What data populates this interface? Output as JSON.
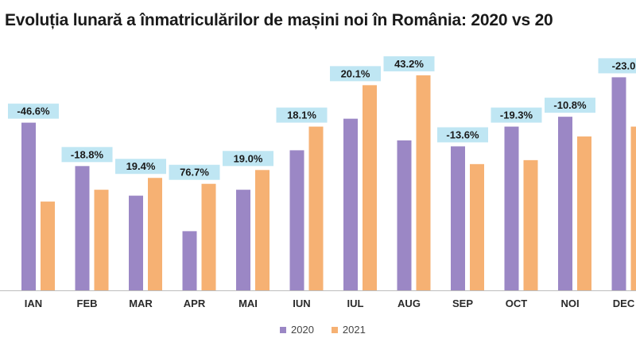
{
  "colors": {
    "s2020": "#9b87c5",
    "s2021": "#f6b173",
    "label_bg": "#bfe6f3",
    "axis": "#bdbdbd"
  },
  "chart_data": {
    "type": "bar",
    "title": "Evoluția lunară a înmatriculărilor de mașini noi în România: 2020 vs 20",
    "categories": [
      "IAN",
      "FEB",
      "MAR",
      "APR",
      "MAI",
      "IUN",
      "IUL",
      "AUG",
      "SEP",
      "OCT",
      "NOI",
      "DEC"
    ],
    "series": [
      {
        "name": "2020",
        "values": [
          8.5,
          6.3,
          4.8,
          3.0,
          5.1,
          7.1,
          8.7,
          7.6,
          7.3,
          8.3,
          8.8,
          10.8
        ]
      },
      {
        "name": "2021",
        "values": [
          4.5,
          5.1,
          5.7,
          5.4,
          6.1,
          8.3,
          10.4,
          10.9,
          6.4,
          6.6,
          7.8,
          8.3
        ]
      }
    ],
    "change_labels": [
      "-46.6%",
      "-18.8%",
      "19.4%",
      "76.7%",
      "19.0%",
      "18.1%",
      "20.1%",
      "43.2%",
      "-13.6%",
      "-19.3%",
      "-10.8%",
      "-23.0"
    ],
    "ylim": [
      0,
      11.5
    ],
    "grid": false,
    "legend_position": "bottom-center"
  }
}
